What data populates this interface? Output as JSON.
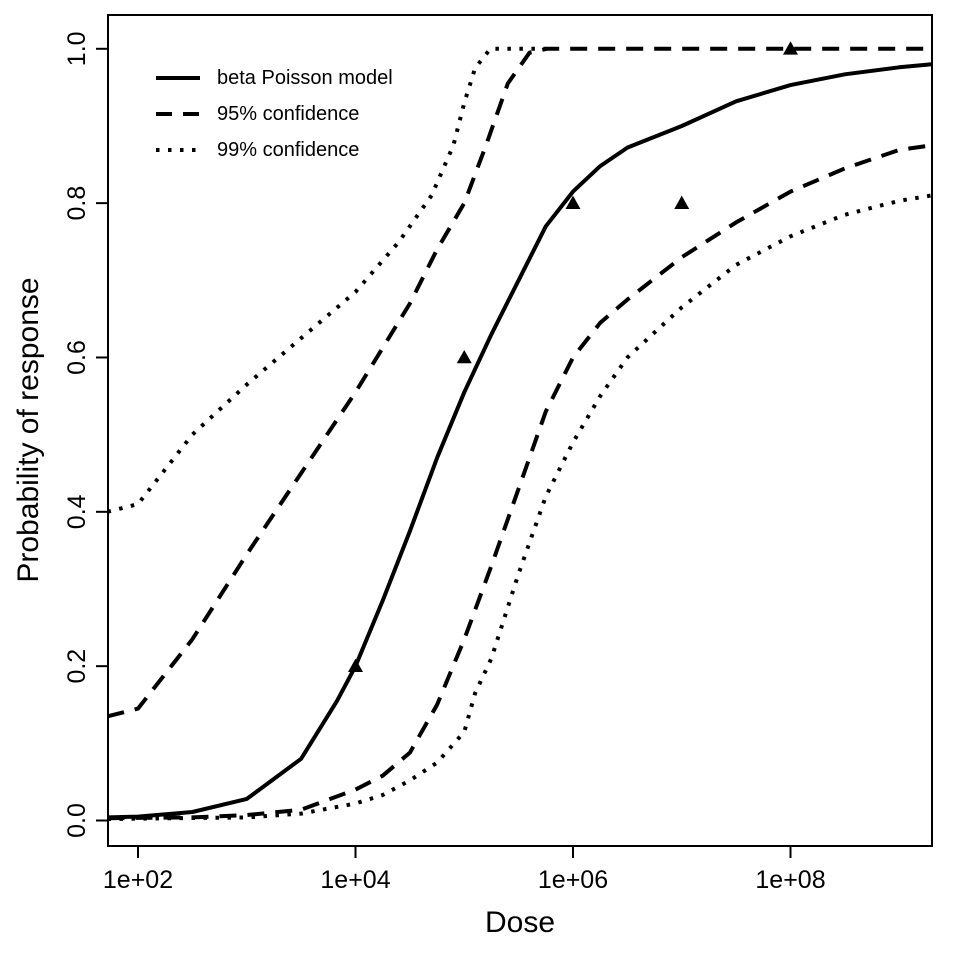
{
  "chart_data": {
    "type": "line",
    "title": "",
    "xlabel": "Dose",
    "ylabel": "Probability of response",
    "x_axis": {
      "scale": "log10",
      "range_log10": [
        1.72,
        9.3
      ],
      "ticks": [
        {
          "label": "1e+02",
          "log10": 2
        },
        {
          "label": "1e+04",
          "log10": 4
        },
        {
          "label": "1e+06",
          "log10": 6
        },
        {
          "label": "1e+08",
          "log10": 8
        }
      ]
    },
    "y_axis": {
      "scale": "linear",
      "range": [
        -0.033,
        1.033
      ],
      "ticks": [
        {
          "label": "0.0",
          "value": 0.0
        },
        {
          "label": "0.2",
          "value": 0.2
        },
        {
          "label": "0.4",
          "value": 0.4
        },
        {
          "label": "0.6",
          "value": 0.6
        },
        {
          "label": "0.8",
          "value": 0.8
        },
        {
          "label": "1.0",
          "value": 1.0
        }
      ]
    },
    "grid": false,
    "legend_position": "top-left-inside",
    "legend": [
      {
        "label": "beta Poisson model",
        "style": "solid"
      },
      {
        "label": "95% confidence",
        "style": "dashed"
      },
      {
        "label": "99% confidence",
        "style": "dotted"
      }
    ],
    "colors": {
      "foreground": "#000000",
      "background": "#ffffff"
    },
    "series": [
      {
        "name": "99% confidence upper",
        "style": "dotted",
        "points": [
          [
            1.72,
            0.4
          ],
          [
            2.0,
            0.41
          ],
          [
            2.5,
            0.5
          ],
          [
            3.0,
            0.565
          ],
          [
            3.5,
            0.625
          ],
          [
            4.0,
            0.685
          ],
          [
            4.4,
            0.75
          ],
          [
            4.7,
            0.81
          ],
          [
            4.9,
            0.875
          ],
          [
            5.0,
            0.93
          ],
          [
            5.1,
            0.975
          ],
          [
            5.24,
            1.0
          ],
          [
            5.78,
            1.0
          ]
        ]
      },
      {
        "name": "99% confidence lower",
        "style": "dotted",
        "points": [
          [
            1.72,
            0.002
          ],
          [
            3.0,
            0.004
          ],
          [
            3.5,
            0.009
          ],
          [
            4.0,
            0.022
          ],
          [
            4.25,
            0.033
          ],
          [
            4.5,
            0.052
          ],
          [
            4.75,
            0.075
          ],
          [
            5.0,
            0.115
          ],
          [
            5.1,
            0.165
          ],
          [
            5.25,
            0.21
          ],
          [
            5.5,
            0.32
          ],
          [
            5.75,
            0.42
          ],
          [
            6.0,
            0.49
          ],
          [
            6.25,
            0.55
          ],
          [
            6.5,
            0.6
          ],
          [
            7.0,
            0.665
          ],
          [
            7.5,
            0.72
          ],
          [
            8.0,
            0.757
          ],
          [
            8.5,
            0.785
          ],
          [
            9.0,
            0.803
          ],
          [
            9.3,
            0.81
          ]
        ]
      },
      {
        "name": "95% confidence upper",
        "style": "dashed",
        "points": [
          [
            1.72,
            0.135
          ],
          [
            2.0,
            0.145
          ],
          [
            2.5,
            0.235
          ],
          [
            3.0,
            0.345
          ],
          [
            3.5,
            0.45
          ],
          [
            4.0,
            0.555
          ],
          [
            4.5,
            0.67
          ],
          [
            4.75,
            0.74
          ],
          [
            5.0,
            0.8
          ],
          [
            5.2,
            0.875
          ],
          [
            5.4,
            0.955
          ],
          [
            5.6,
            0.995
          ],
          [
            5.76,
            1.0
          ],
          [
            9.3,
            1.0
          ]
        ]
      },
      {
        "name": "95% confidence lower",
        "style": "dashed",
        "points": [
          [
            1.72,
            0.003
          ],
          [
            2.5,
            0.004
          ],
          [
            3.0,
            0.007
          ],
          [
            3.5,
            0.014
          ],
          [
            4.0,
            0.04
          ],
          [
            4.25,
            0.058
          ],
          [
            4.5,
            0.088
          ],
          [
            4.75,
            0.15
          ],
          [
            5.0,
            0.235
          ],
          [
            5.25,
            0.33
          ],
          [
            5.5,
            0.43
          ],
          [
            5.75,
            0.53
          ],
          [
            6.0,
            0.6
          ],
          [
            6.25,
            0.645
          ],
          [
            6.5,
            0.675
          ],
          [
            7.0,
            0.73
          ],
          [
            7.5,
            0.775
          ],
          [
            8.0,
            0.815
          ],
          [
            8.5,
            0.845
          ],
          [
            9.0,
            0.869
          ],
          [
            9.3,
            0.875
          ]
        ]
      },
      {
        "name": "beta Poisson model",
        "style": "solid",
        "points": [
          [
            1.72,
            0.004
          ],
          [
            2.0,
            0.005
          ],
          [
            2.5,
            0.011
          ],
          [
            3.0,
            0.028
          ],
          [
            3.5,
            0.08
          ],
          [
            3.83,
            0.155
          ],
          [
            4.0,
            0.2
          ],
          [
            4.25,
            0.285
          ],
          [
            4.5,
            0.375
          ],
          [
            4.75,
            0.47
          ],
          [
            5.0,
            0.555
          ],
          [
            5.25,
            0.63
          ],
          [
            5.5,
            0.7
          ],
          [
            5.75,
            0.77
          ],
          [
            6.0,
            0.815
          ],
          [
            6.25,
            0.848
          ],
          [
            6.5,
            0.872
          ],
          [
            7.0,
            0.9
          ],
          [
            7.5,
            0.932
          ],
          [
            8.0,
            0.953
          ],
          [
            8.5,
            0.967
          ],
          [
            9.0,
            0.976
          ],
          [
            9.3,
            0.98
          ]
        ]
      }
    ],
    "data_points": {
      "marker": "filled-triangle-up",
      "points": [
        [
          4.0,
          0.2
        ],
        [
          5.0,
          0.6
        ],
        [
          6.0,
          0.8
        ],
        [
          7.0,
          0.8
        ],
        [
          8.0,
          1.0
        ]
      ]
    }
  }
}
